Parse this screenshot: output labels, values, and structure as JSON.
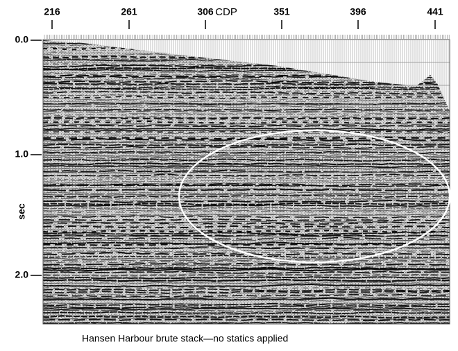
{
  "top_axis": {
    "label": "CDP",
    "ticks": [
      "216",
      "261",
      "306",
      "351",
      "396",
      "441"
    ]
  },
  "left_axis": {
    "label": "sec",
    "ticks": [
      "0.0",
      "1.0",
      "2.0"
    ]
  },
  "caption": "Hansen Harbour brute stack—no statics applied"
}
